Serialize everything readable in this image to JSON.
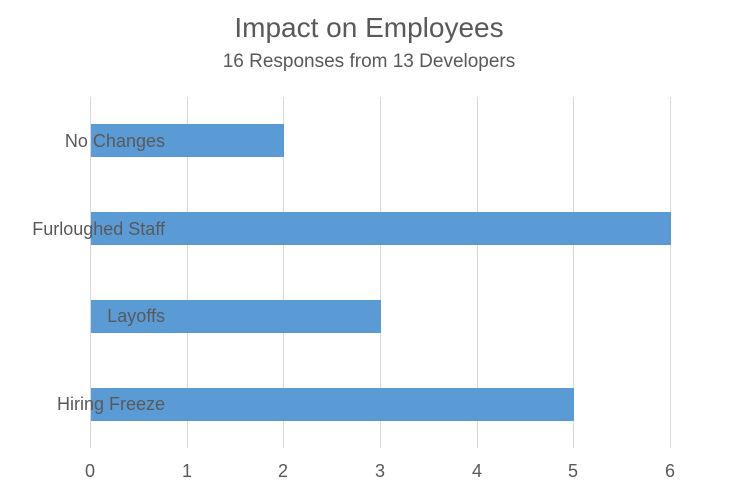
{
  "chart_data": {
    "type": "bar",
    "orientation": "horizontal",
    "title": "Impact on Employees",
    "subtitle": "16 Responses from 13 Developers",
    "categories": [
      "No Changes",
      "Furloughed Staff",
      "Layoffs",
      "Hiring Freeze"
    ],
    "values": [
      2,
      6,
      3,
      5
    ],
    "xlabel": "",
    "ylabel": "",
    "xlim": [
      0,
      6
    ],
    "x_ticks": [
      "0",
      "1",
      "2",
      "3",
      "4",
      "5",
      "6"
    ],
    "grid": "vertical-gridlines-on",
    "legend": "none",
    "colors": {
      "bar_fill": "#5B9BD5",
      "gridline": "#D9D9D9",
      "text": "#595959"
    }
  }
}
